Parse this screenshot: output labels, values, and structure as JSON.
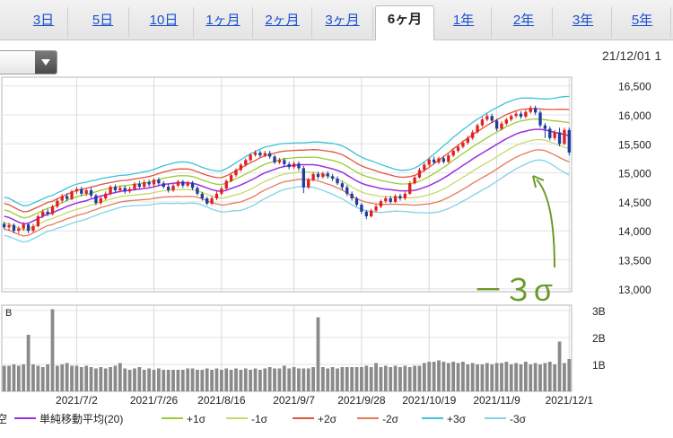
{
  "tabs": [
    {
      "label": "3日",
      "active": false
    },
    {
      "label": "5日",
      "active": false
    },
    {
      "label": "10日",
      "active": false
    },
    {
      "label": "1ヶ月",
      "active": false
    },
    {
      "label": "2ヶ月",
      "active": false
    },
    {
      "label": "3ヶ月",
      "active": false
    },
    {
      "label": "6ヶ月",
      "active": true
    },
    {
      "label": "1年",
      "active": false
    },
    {
      "label": "2年",
      "active": false
    },
    {
      "label": "3年",
      "active": false
    },
    {
      "label": "5年",
      "active": false
    }
  ],
  "timestamp": "21/12/01 1",
  "annotation": "－３σ",
  "colors": {
    "sma": "#9b30d9",
    "p1": "#9acd32",
    "m1": "#c8d96b",
    "p2": "#e0553c",
    "m2": "#e57a5a",
    "p3": "#3ec3d8",
    "m3": "#7fd3e6",
    "up": "#e02020",
    "down": "#1f3d9e",
    "annotation": "#6a9a2a"
  },
  "chart_data": {
    "type": "line",
    "price_axis": {
      "ylim": [
        12950,
        16650
      ],
      "ticks": [
        "16,500",
        "16,000",
        "15,500",
        "15,000",
        "14,500",
        "14,000",
        "13,500",
        "13,000"
      ],
      "tick_values": [
        16500,
        16000,
        15500,
        15000,
        14500,
        14000,
        13500,
        13000
      ]
    },
    "volume_axis": {
      "ylim": [
        0,
        3.2
      ],
      "ticks": [
        "3B",
        "2B",
        "1B"
      ],
      "tick_values": [
        3,
        2,
        1
      ],
      "unit_label": "B"
    },
    "x_ticks": [
      "2021/7/2",
      "2021/7/26",
      "2021/8/16",
      "2021/9/7",
      "2021/9/28",
      "2021/10/19",
      "2021/11/9",
      "2021/12/1"
    ],
    "x_tick_index": [
      15,
      31,
      45,
      60,
      74,
      88,
      102,
      117
    ],
    "sma": [
      14250,
      14230,
      14190,
      14150,
      14120,
      14130,
      14170,
      14210,
      14250,
      14290,
      14310,
      14350,
      14380,
      14420,
      14450,
      14480,
      14500,
      14520,
      14550,
      14570,
      14600,
      14620,
      14640,
      14660,
      14680,
      14690,
      14700,
      14710,
      14720,
      14730,
      14740,
      14760,
      14780,
      14800,
      14810,
      14820,
      14830,
      14830,
      14830,
      14820,
      14800,
      14770,
      14740,
      14710,
      14690,
      14680,
      14700,
      14730,
      14760,
      14790,
      14830,
      14870,
      14910,
      14960,
      15000,
      15030,
      15060,
      15090,
      15110,
      15120,
      15130,
      15140,
      15140,
      15140,
      15140,
      15130,
      15110,
      15090,
      15070,
      15040,
      15010,
      14960,
      14910,
      14860,
      14820,
      14790,
      14770,
      14750,
      14730,
      14720,
      14710,
      14700,
      14690,
      14690,
      14690,
      14700,
      14720,
      14750,
      14780,
      14820,
      14860,
      14910,
      14960,
      15020,
      15070,
      15130,
      15180,
      15240,
      15290,
      15340,
      15390,
      15440,
      15490,
      15540,
      15590,
      15630,
      15670,
      15700,
      15720,
      15740,
      15750,
      15750,
      15740,
      15720,
      15700,
      15680,
      15660,
      15640
    ],
    "sigma": [
      110,
      110,
      108,
      106,
      104,
      103,
      102,
      101,
      100,
      100,
      100,
      102,
      104,
      106,
      108,
      108,
      108,
      106,
      104,
      102,
      100,
      98,
      96,
      94,
      92,
      90,
      90,
      92,
      94,
      96,
      98,
      100,
      104,
      108,
      112,
      116,
      118,
      120,
      118,
      114,
      110,
      108,
      110,
      112,
      114,
      118,
      124,
      130,
      138,
      146,
      150,
      152,
      152,
      150,
      148,
      144,
      140,
      136,
      132,
      130,
      128,
      126,
      126,
      128,
      130,
      134,
      138,
      142,
      146,
      150,
      152,
      154,
      154,
      152,
      150,
      148,
      146,
      142,
      138,
      132,
      126,
      120,
      118,
      118,
      122,
      128,
      136,
      146,
      158,
      168,
      178,
      186,
      192,
      198,
      202,
      206,
      208,
      210,
      212,
      212,
      214,
      214,
      212,
      210,
      208,
      204,
      200,
      196,
      190,
      184,
      178,
      176,
      178,
      186,
      196,
      208,
      218,
      226
    ],
    "candles": [
      [
        14120,
        14060,
        14160,
        14030
      ],
      [
        14060,
        14100,
        14140,
        14000
      ],
      [
        14100,
        14000,
        14130,
        13960
      ],
      [
        14000,
        14040,
        14080,
        13950
      ],
      [
        14040,
        14110,
        14150,
        14000
      ],
      [
        14110,
        14000,
        14140,
        13960
      ],
      [
        14000,
        14080,
        14120,
        13970
      ],
      [
        14080,
        14250,
        14280,
        14060
      ],
      [
        14250,
        14330,
        14370,
        14220
      ],
      [
        14330,
        14290,
        14380,
        14250
      ],
      [
        14290,
        14420,
        14450,
        14270
      ],
      [
        14420,
        14520,
        14560,
        14390
      ],
      [
        14520,
        14600,
        14640,
        14480
      ],
      [
        14600,
        14550,
        14650,
        14510
      ],
      [
        14550,
        14680,
        14710,
        14530
      ],
      [
        14680,
        14720,
        14760,
        14640
      ],
      [
        14720,
        14640,
        14760,
        14600
      ],
      [
        14640,
        14700,
        14740,
        14600
      ],
      [
        14700,
        14610,
        14750,
        14570
      ],
      [
        14610,
        14480,
        14640,
        14440
      ],
      [
        14480,
        14560,
        14600,
        14450
      ],
      [
        14560,
        14640,
        14680,
        14530
      ],
      [
        14640,
        14760,
        14790,
        14610
      ],
      [
        14760,
        14700,
        14800,
        14660
      ],
      [
        14700,
        14740,
        14780,
        14660
      ],
      [
        14740,
        14680,
        14780,
        14640
      ],
      [
        14680,
        14720,
        14760,
        14650
      ],
      [
        14720,
        14810,
        14840,
        14690
      ],
      [
        14810,
        14760,
        14860,
        14730
      ],
      [
        14760,
        14840,
        14880,
        14740
      ],
      [
        14840,
        14800,
        14880,
        14760
      ],
      [
        14800,
        14880,
        14910,
        14770
      ],
      [
        14880,
        14820,
        14920,
        14780
      ],
      [
        14820,
        14760,
        14860,
        14730
      ],
      [
        14760,
        14700,
        14800,
        14660
      ],
      [
        14700,
        14780,
        14810,
        14670
      ],
      [
        14780,
        14850,
        14880,
        14750
      ],
      [
        14850,
        14780,
        14880,
        14740
      ],
      [
        14780,
        14830,
        14860,
        14750
      ],
      [
        14830,
        14740,
        14860,
        14700
      ],
      [
        14740,
        14640,
        14770,
        14610
      ],
      [
        14640,
        14560,
        14670,
        14520
      ],
      [
        14560,
        14470,
        14590,
        14440
      ],
      [
        14470,
        14560,
        14600,
        14440
      ],
      [
        14560,
        14640,
        14680,
        14530
      ],
      [
        14640,
        14730,
        14770,
        14610
      ],
      [
        14730,
        14860,
        14890,
        14710
      ],
      [
        14860,
        14960,
        14990,
        14840
      ],
      [
        14960,
        15050,
        15080,
        14930
      ],
      [
        15050,
        15140,
        15170,
        15020
      ],
      [
        15140,
        15220,
        15250,
        15110
      ],
      [
        15220,
        15310,
        15340,
        15190
      ],
      [
        15310,
        15350,
        15390,
        15280
      ],
      [
        15350,
        15300,
        15390,
        15260
      ],
      [
        15300,
        15340,
        15380,
        15270
      ],
      [
        15340,
        15280,
        15380,
        15240
      ],
      [
        15280,
        15180,
        15310,
        15150
      ],
      [
        15180,
        15220,
        15260,
        15150
      ],
      [
        15220,
        15150,
        15260,
        15110
      ],
      [
        15150,
        15100,
        15190,
        15060
      ],
      [
        15100,
        15160,
        15200,
        15070
      ],
      [
        15160,
        15080,
        15200,
        15040
      ],
      [
        15080,
        14750,
        15120,
        14650
      ],
      [
        14750,
        14880,
        14920,
        14720
      ],
      [
        14880,
        14980,
        15010,
        14850
      ],
      [
        14980,
        14930,
        15020,
        14890
      ],
      [
        14930,
        14990,
        15020,
        14900
      ],
      [
        14990,
        14940,
        15030,
        14900
      ],
      [
        14940,
        14900,
        14980,
        14860
      ],
      [
        14900,
        14820,
        14940,
        14790
      ],
      [
        14820,
        14750,
        14860,
        14700
      ],
      [
        14750,
        14640,
        14790,
        14600
      ],
      [
        14640,
        14560,
        14680,
        14520
      ],
      [
        14560,
        14450,
        14590,
        14420
      ],
      [
        14450,
        14330,
        14480,
        14290
      ],
      [
        14330,
        14250,
        14360,
        14200
      ],
      [
        14250,
        14350,
        14380,
        14230
      ],
      [
        14350,
        14420,
        14460,
        14320
      ],
      [
        14420,
        14510,
        14540,
        14390
      ],
      [
        14510,
        14560,
        14600,
        14480
      ],
      [
        14560,
        14500,
        14600,
        14470
      ],
      [
        14500,
        14600,
        14630,
        14480
      ],
      [
        14600,
        14560,
        14640,
        14520
      ],
      [
        14560,
        14640,
        14680,
        14530
      ],
      [
        14640,
        14820,
        14860,
        14620
      ],
      [
        14820,
        14920,
        14960,
        14800
      ],
      [
        14920,
        15050,
        15090,
        14900
      ],
      [
        15050,
        15140,
        15180,
        15020
      ],
      [
        15140,
        15230,
        15260,
        15110
      ],
      [
        15230,
        15180,
        15280,
        15150
      ],
      [
        15180,
        15250,
        15280,
        15150
      ],
      [
        15250,
        15190,
        15290,
        15160
      ],
      [
        15190,
        15300,
        15330,
        15170
      ],
      [
        15300,
        15380,
        15420,
        15270
      ],
      [
        15380,
        15450,
        15490,
        15350
      ],
      [
        15450,
        15520,
        15560,
        15420
      ],
      [
        15520,
        15600,
        15640,
        15490
      ],
      [
        15600,
        15700,
        15740,
        15570
      ],
      [
        15700,
        15820,
        15850,
        15680
      ],
      [
        15820,
        15920,
        15960,
        15790
      ],
      [
        15920,
        15980,
        16020,
        15890
      ],
      [
        15980,
        15900,
        16020,
        15860
      ],
      [
        15900,
        15760,
        15930,
        15720
      ],
      [
        15760,
        15850,
        15890,
        15730
      ],
      [
        15850,
        15920,
        15950,
        15820
      ],
      [
        15920,
        15980,
        16010,
        15890
      ],
      [
        15980,
        16020,
        16060,
        15950
      ],
      [
        16020,
        15970,
        16060,
        15930
      ],
      [
        15970,
        16050,
        16090,
        15940
      ],
      [
        16050,
        16120,
        16160,
        16020
      ],
      [
        16120,
        16040,
        16160,
        16000
      ],
      [
        16040,
        15820,
        16080,
        15780
      ],
      [
        15820,
        15760,
        15860,
        15600
      ],
      [
        15760,
        15600,
        15800,
        15560
      ],
      [
        15600,
        15700,
        15740,
        15560
      ],
      [
        15700,
        15500,
        15780,
        15460
      ],
      [
        15500,
        15740,
        15780,
        15480
      ],
      [
        15740,
        15350,
        15780,
        15300
      ]
    ],
    "volume": [
      0.95,
      0.95,
      1.0,
      0.95,
      1.0,
      2.1,
      1.0,
      0.95,
      0.9,
      1.0,
      3.05,
      0.95,
      1.0,
      1.05,
      0.95,
      0.95,
      0.9,
      0.95,
      0.9,
      0.85,
      0.9,
      0.85,
      0.9,
      0.95,
      1.05,
      0.85,
      0.8,
      0.85,
      0.9,
      0.8,
      0.85,
      0.8,
      0.85,
      0.8,
      0.8,
      0.8,
      0.8,
      0.8,
      0.85,
      0.85,
      0.8,
      0.8,
      0.85,
      0.8,
      0.85,
      0.8,
      0.85,
      0.8,
      0.85,
      0.8,
      0.85,
      0.8,
      0.85,
      0.8,
      0.85,
      0.9,
      0.85,
      0.85,
      0.95,
      0.85,
      0.9,
      0.85,
      0.85,
      0.85,
      0.9,
      2.75,
      0.9,
      0.85,
      0.9,
      0.85,
      0.9,
      0.9,
      0.9,
      0.9,
      0.9,
      0.95,
      0.9,
      1.05,
      0.9,
      0.95,
      0.9,
      0.95,
      0.9,
      0.95,
      0.9,
      0.95,
      0.95,
      1.05,
      1.1,
      1.1,
      1.15,
      1.1,
      1.05,
      1.1,
      1.05,
      1.1,
      1.0,
      1.05,
      1.0,
      1.0,
      1.05,
      1.0,
      1.05,
      1.05,
      1.1,
      1.0,
      1.05,
      1.0,
      1.1,
      1.0,
      1.05,
      1.0,
      1.05,
      1.1,
      1.0,
      1.85,
      1.05,
      1.2
    ]
  },
  "legend": {
    "title": "空",
    "items": [
      {
        "label": "単純移動平均(20)",
        "color_key": "sma"
      },
      {
        "label": "+1σ",
        "color_key": "p1"
      },
      {
        "label": "-1σ",
        "color_key": "m1"
      },
      {
        "label": "+2σ",
        "color_key": "p2"
      },
      {
        "label": "-2σ",
        "color_key": "m2"
      },
      {
        "label": "+3σ",
        "color_key": "p3"
      },
      {
        "label": "-3σ",
        "color_key": "m3"
      }
    ]
  }
}
